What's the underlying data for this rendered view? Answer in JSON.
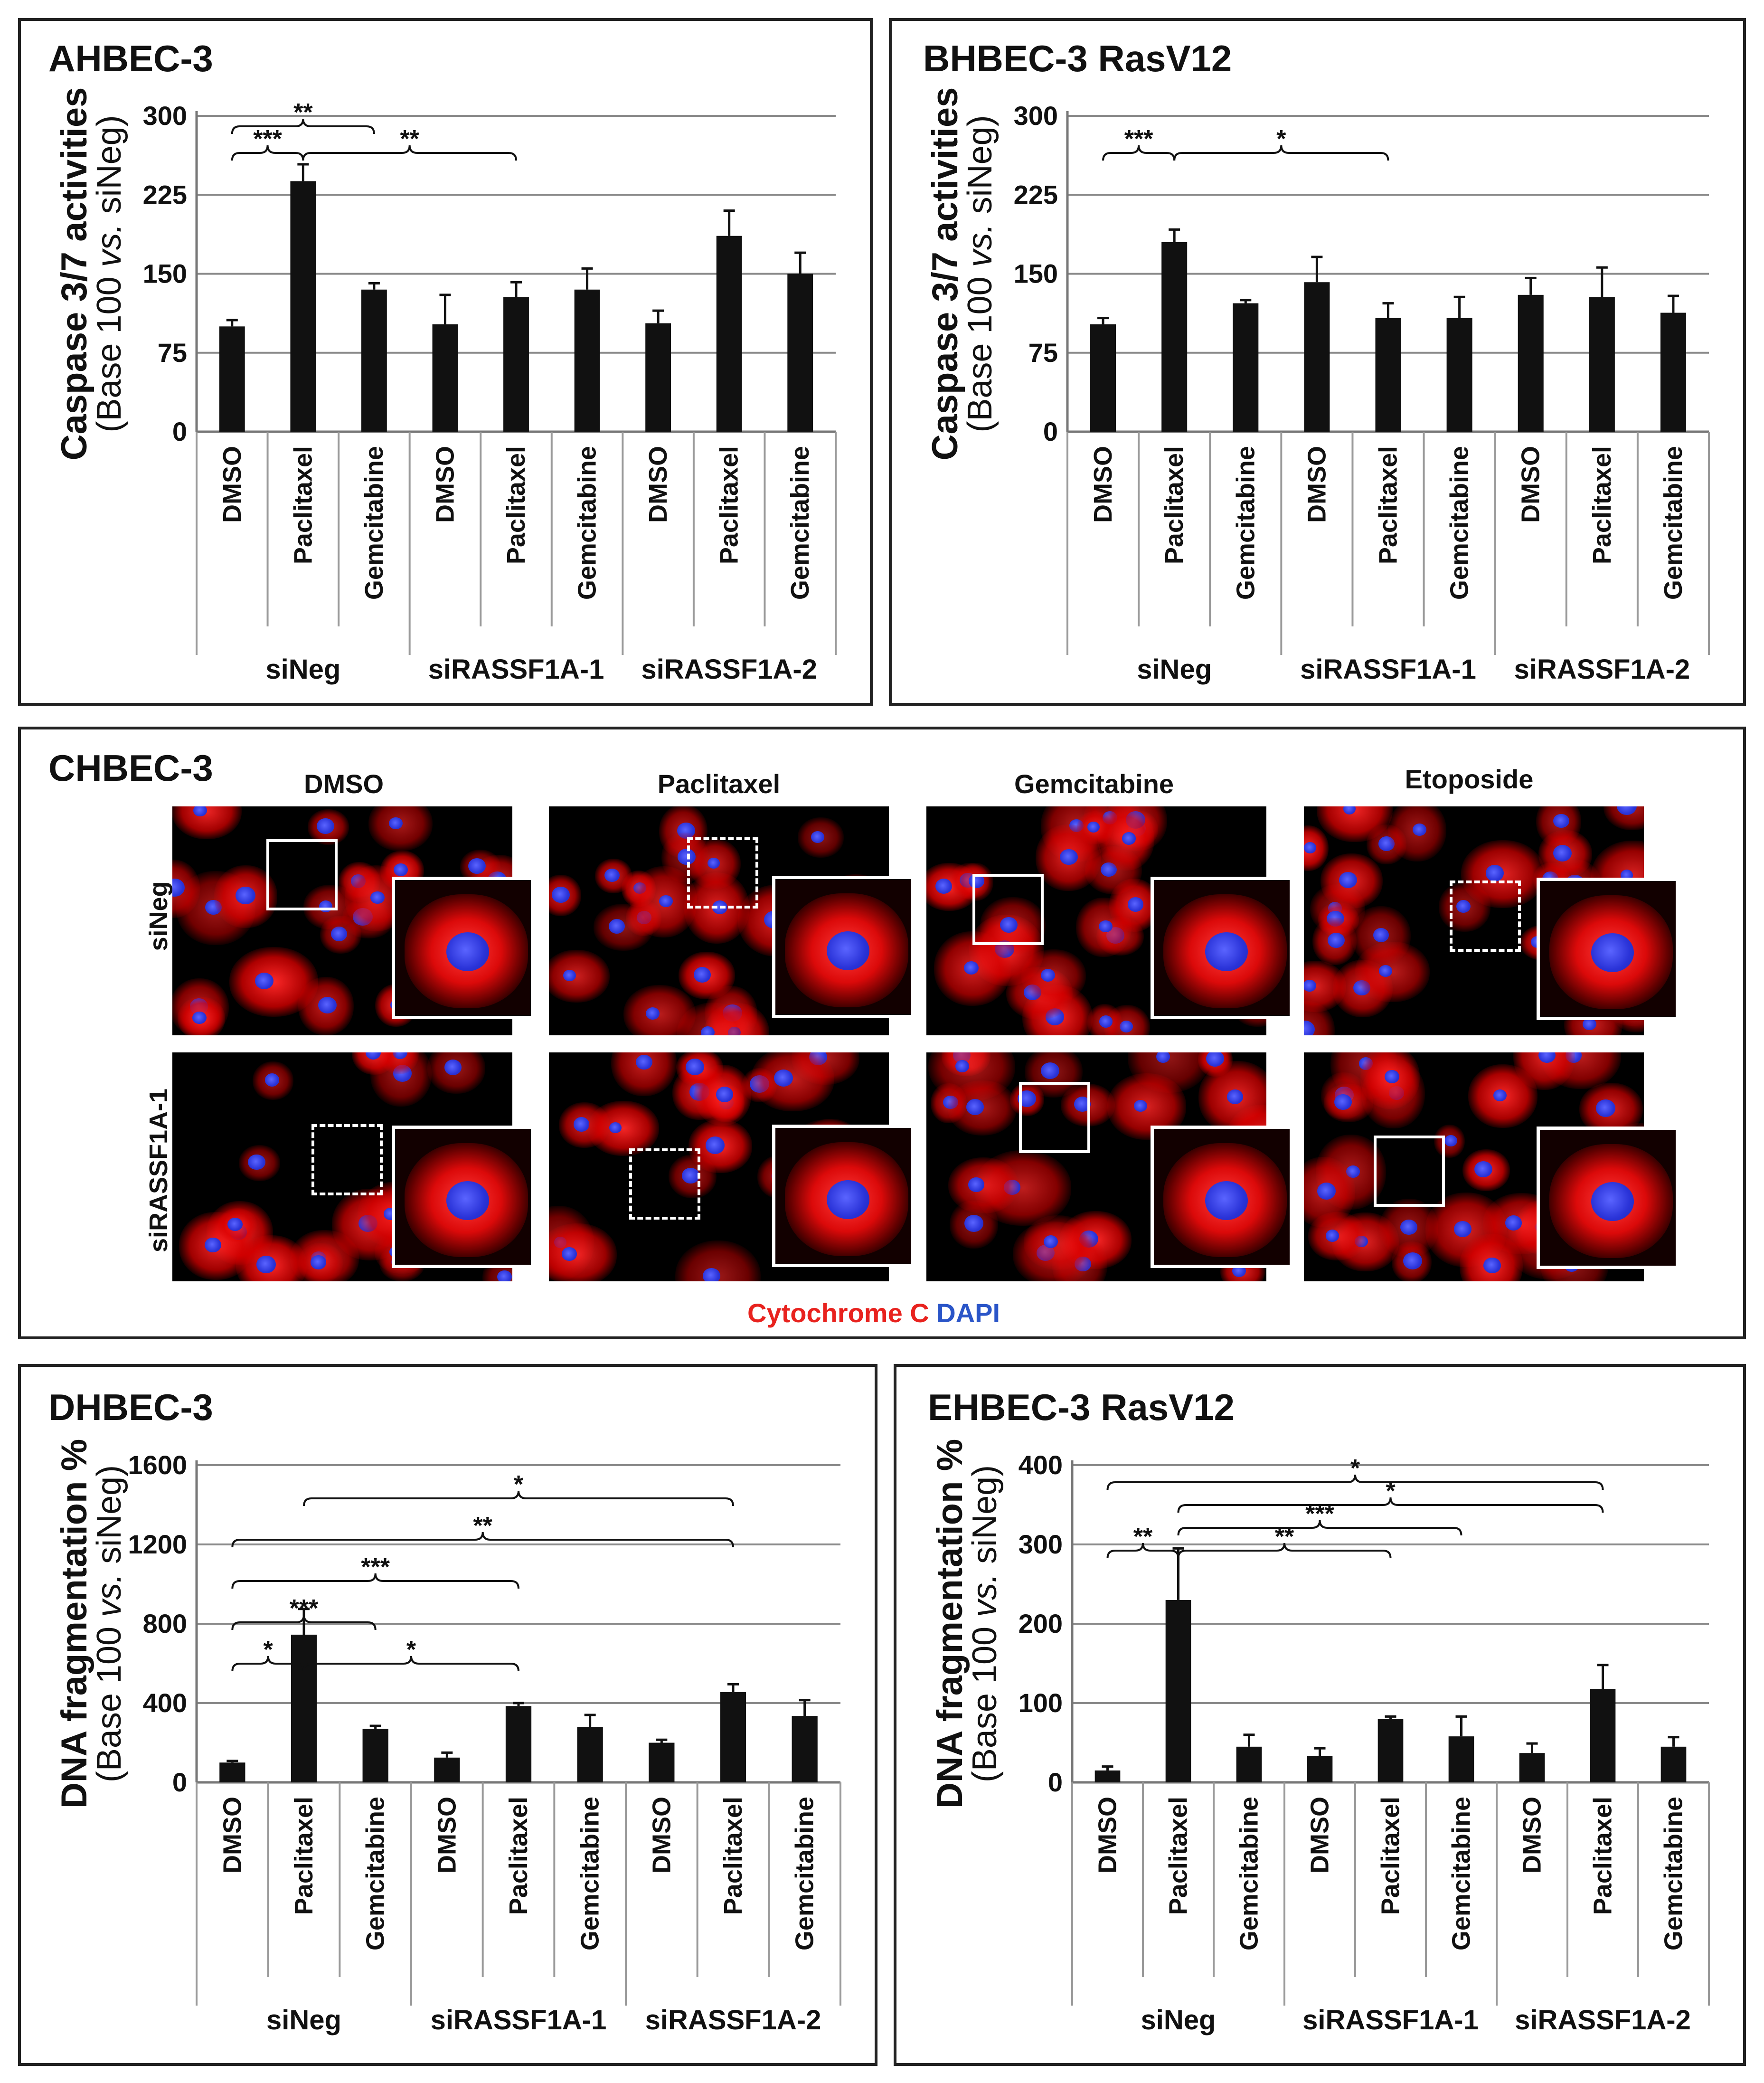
{
  "panels": {
    "A": {
      "letter": "A",
      "title": "HBEC-3"
    },
    "B": {
      "letter": "B",
      "title": "HBEC-3 RasV12"
    },
    "C": {
      "letter": "C",
      "title": "HBEC-3"
    },
    "D": {
      "letter": "D",
      "title": "HBEC-3"
    },
    "E": {
      "letter": "E",
      "title": "HBEC-3 RasV12"
    }
  },
  "microscopy": {
    "columns": [
      "DMSO",
      "Paclitaxel",
      "Gemcitabine",
      "Etoposide"
    ],
    "rows": [
      "siNeg",
      "siRASSF1A-1"
    ],
    "legend_red": "Cytochrome C",
    "legend_blue": "DAPI",
    "colors": {
      "cyto": "#ff1a1a",
      "dapi": "#2a3bff"
    }
  },
  "chart_data": [
    {
      "id": "A",
      "type": "bar",
      "ylabel_main": "Caspase 3/7 activities",
      "ylabel_sub_pre": "(Base 100 ",
      "ylabel_sub_it": "vs.",
      "ylabel_sub_post": " siNeg)",
      "ylim": [
        0,
        300
      ],
      "yticks": [
        0,
        75,
        150,
        225,
        300
      ],
      "categories": [
        "DMSO",
        "Paclitaxel",
        "Gemcitabine",
        "DMSO",
        "Paclitaxel",
        "Gemcitabine",
        "DMSO",
        "Paclitaxel",
        "Gemcitabine"
      ],
      "groups": [
        "siNeg",
        "siRASSF1A-1",
        "siRASSF1A-2"
      ],
      "values": [
        100,
        238,
        135,
        102,
        128,
        135,
        103,
        186,
        150
      ],
      "errors": [
        6,
        16,
        6,
        28,
        14,
        20,
        12,
        24,
        20
      ],
      "significance": [
        {
          "from": 0,
          "to": 1,
          "label": "***",
          "level": 1
        },
        {
          "from": 0,
          "to": 2,
          "label": "**",
          "level": 2
        },
        {
          "from": 1,
          "to": 4,
          "label": "**",
          "level": 1
        }
      ],
      "bar_color": "#111111",
      "grid": true
    },
    {
      "id": "B",
      "type": "bar",
      "ylabel_main": "Caspase 3/7 activities",
      "ylabel_sub_pre": "(Base 100 ",
      "ylabel_sub_it": "vs.",
      "ylabel_sub_post": " siNeg)",
      "ylim": [
        0,
        300
      ],
      "yticks": [
        0,
        75,
        150,
        225,
        300
      ],
      "categories": [
        "DMSO",
        "Paclitaxel",
        "Gemcitabine",
        "DMSO",
        "Paclitaxel",
        "Gemcitabine",
        "DMSO",
        "Paclitaxel",
        "Gemcitabine"
      ],
      "groups": [
        "siNeg",
        "siRASSF1A-1",
        "siRASSF1A-2"
      ],
      "values": [
        102,
        180,
        122,
        142,
        108,
        108,
        130,
        128,
        113
      ],
      "errors": [
        6,
        12,
        3,
        24,
        14,
        20,
        16,
        28,
        16
      ],
      "significance": [
        {
          "from": 0,
          "to": 1,
          "label": "***",
          "level": 1
        },
        {
          "from": 1,
          "to": 4,
          "label": "*",
          "level": 1
        }
      ],
      "bar_color": "#111111",
      "grid": true
    },
    {
      "id": "D",
      "type": "bar",
      "ylabel_main": "DNA fragmentation %",
      "ylabel_sub_pre": "(Base 100 ",
      "ylabel_sub_it": "vs.",
      "ylabel_sub_post": " siNeg)",
      "ylim": [
        0,
        1600
      ],
      "yticks": [
        0,
        400,
        800,
        1200,
        1600
      ],
      "categories": [
        "DMSO",
        "Paclitaxel",
        "Gemcitabine",
        "DMSO",
        "Paclitaxel",
        "Gemcitabine",
        "DMSO",
        "Paclitaxel",
        "Gemcitabine"
      ],
      "groups": [
        "siNeg",
        "siRASSF1A-1",
        "siRASSF1A-2"
      ],
      "values": [
        100,
        745,
        270,
        125,
        385,
        280,
        200,
        455,
        335
      ],
      "errors": [
        8,
        130,
        15,
        25,
        15,
        60,
        15,
        40,
        80
      ],
      "significance": [
        {
          "from": 0,
          "to": 1,
          "label": "*",
          "level": 1
        },
        {
          "from": 1,
          "to": 4,
          "label": "*",
          "level": 1
        },
        {
          "from": 0,
          "to": 2,
          "label": "***",
          "level": 2
        },
        {
          "from": 0,
          "to": 4,
          "label": "***",
          "level": 3
        },
        {
          "from": 0,
          "to": 7,
          "label": "**",
          "level": 4
        },
        {
          "from": 1,
          "to": 7,
          "label": "*",
          "level": 5
        }
      ],
      "bar_color": "#111111",
      "grid": true
    },
    {
      "id": "E",
      "type": "bar",
      "ylabel_main": "DNA fragmentation %",
      "ylabel_sub_pre": "(Base 100 ",
      "ylabel_sub_it": "vs.",
      "ylabel_sub_post": " siNeg)",
      "ylim": [
        0,
        400
      ],
      "yticks": [
        0,
        100,
        200,
        300,
        400
      ],
      "categories": [
        "DMSO",
        "Paclitaxel",
        "Gemcitabine",
        "DMSO",
        "Paclitaxel",
        "Gemcitabine",
        "DMSO",
        "Paclitaxel",
        "Gemcitabine"
      ],
      "groups": [
        "siNeg",
        "siRASSF1A-1",
        "siRASSF1A-2"
      ],
      "values": [
        15,
        230,
        45,
        33,
        80,
        58,
        37,
        118,
        45
      ],
      "errors": [
        5,
        65,
        15,
        10,
        3,
        25,
        12,
        30,
        12
      ],
      "significance": [
        {
          "from": 0,
          "to": 1,
          "label": "**",
          "level": 1
        },
        {
          "from": 1,
          "to": 4,
          "label": "**",
          "level": 1
        },
        {
          "from": 1,
          "to": 5,
          "label": "***",
          "level": 2
        },
        {
          "from": 1,
          "to": 7,
          "label": "*",
          "level": 3
        },
        {
          "from": 0,
          "to": 7,
          "label": "*",
          "level": 4
        }
      ],
      "bar_color": "#111111",
      "grid": true
    }
  ]
}
